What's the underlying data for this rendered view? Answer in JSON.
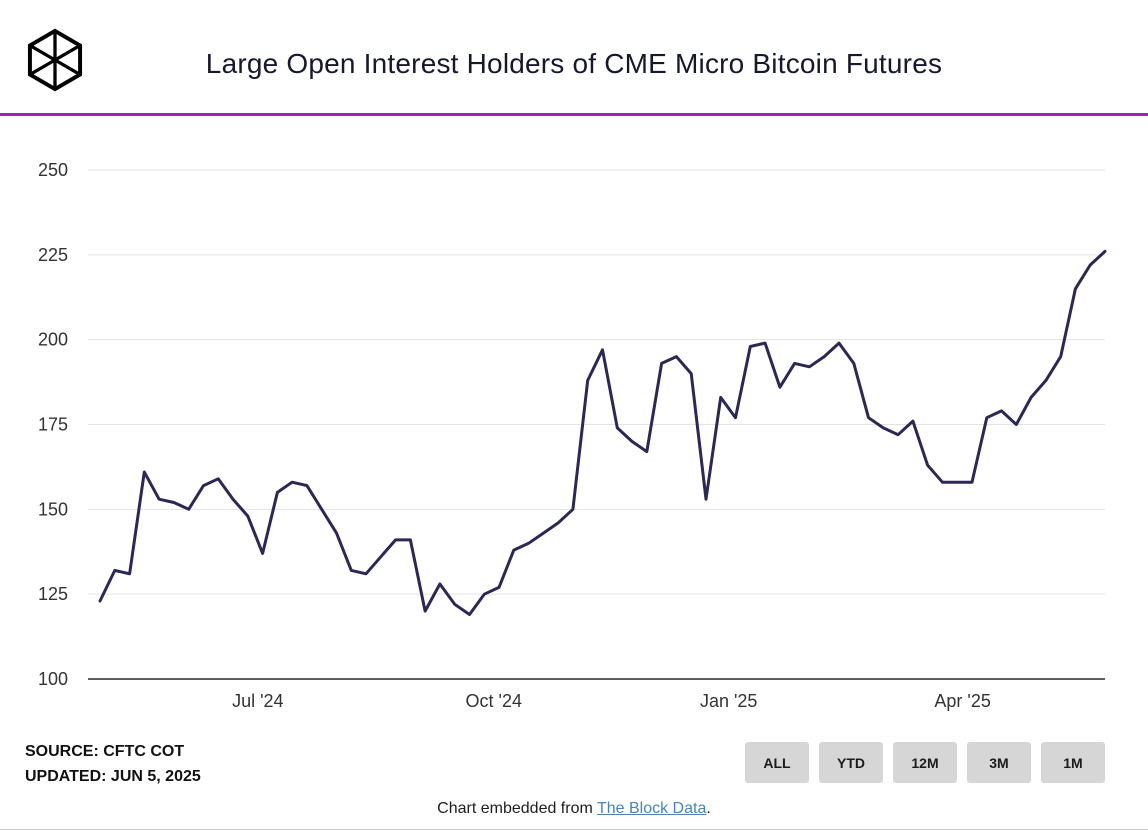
{
  "header": {
    "title": "Large Open Interest Holders of CME Micro Bitcoin Futures",
    "logo_name": "the-block-cube-logo",
    "divider_color": "#a020c0"
  },
  "chart_data": {
    "type": "line",
    "title": "Large Open Interest Holders of CME Micro Bitcoin Futures",
    "ylabel": "",
    "xlabel": "",
    "ylim": [
      100,
      250
    ],
    "y_ticks": [
      100,
      125,
      150,
      175,
      200,
      225,
      250
    ],
    "x_ticks": [
      {
        "label": "Jul '24",
        "pos": 0.167
      },
      {
        "label": "Oct '24",
        "pos": 0.399
      },
      {
        "label": "Jan '25",
        "pos": 0.63
      },
      {
        "label": "Apr '25",
        "pos": 0.86
      }
    ],
    "grid": true,
    "legend_position": "none",
    "line_color": "#2b2857",
    "series": [
      {
        "name": "Large Open Interest Holders",
        "values": [
          123,
          132,
          131,
          161,
          153,
          152,
          150,
          157,
          159,
          153,
          148,
          137,
          155,
          158,
          157,
          150,
          143,
          132,
          131,
          136,
          141,
          141,
          120,
          128,
          122,
          119,
          125,
          127,
          138,
          140,
          143,
          146,
          150,
          188,
          197,
          174,
          170,
          167,
          193,
          195,
          190,
          153,
          183,
          177,
          198,
          199,
          186,
          193,
          192,
          195,
          199,
          193,
          177,
          174,
          172,
          176,
          163,
          158,
          158,
          158,
          177,
          179,
          175,
          183,
          188,
          195,
          215,
          222,
          226
        ]
      }
    ]
  },
  "footer": {
    "source_line1": "SOURCE: CFTC COT",
    "source_line2": "UPDATED: JUN 5, 2025",
    "range_buttons": [
      "ALL",
      "YTD",
      "12M",
      "3M",
      "1M"
    ],
    "caption_prefix": "Chart embedded from ",
    "caption_link": "The Block Data",
    "caption_suffix": "."
  }
}
